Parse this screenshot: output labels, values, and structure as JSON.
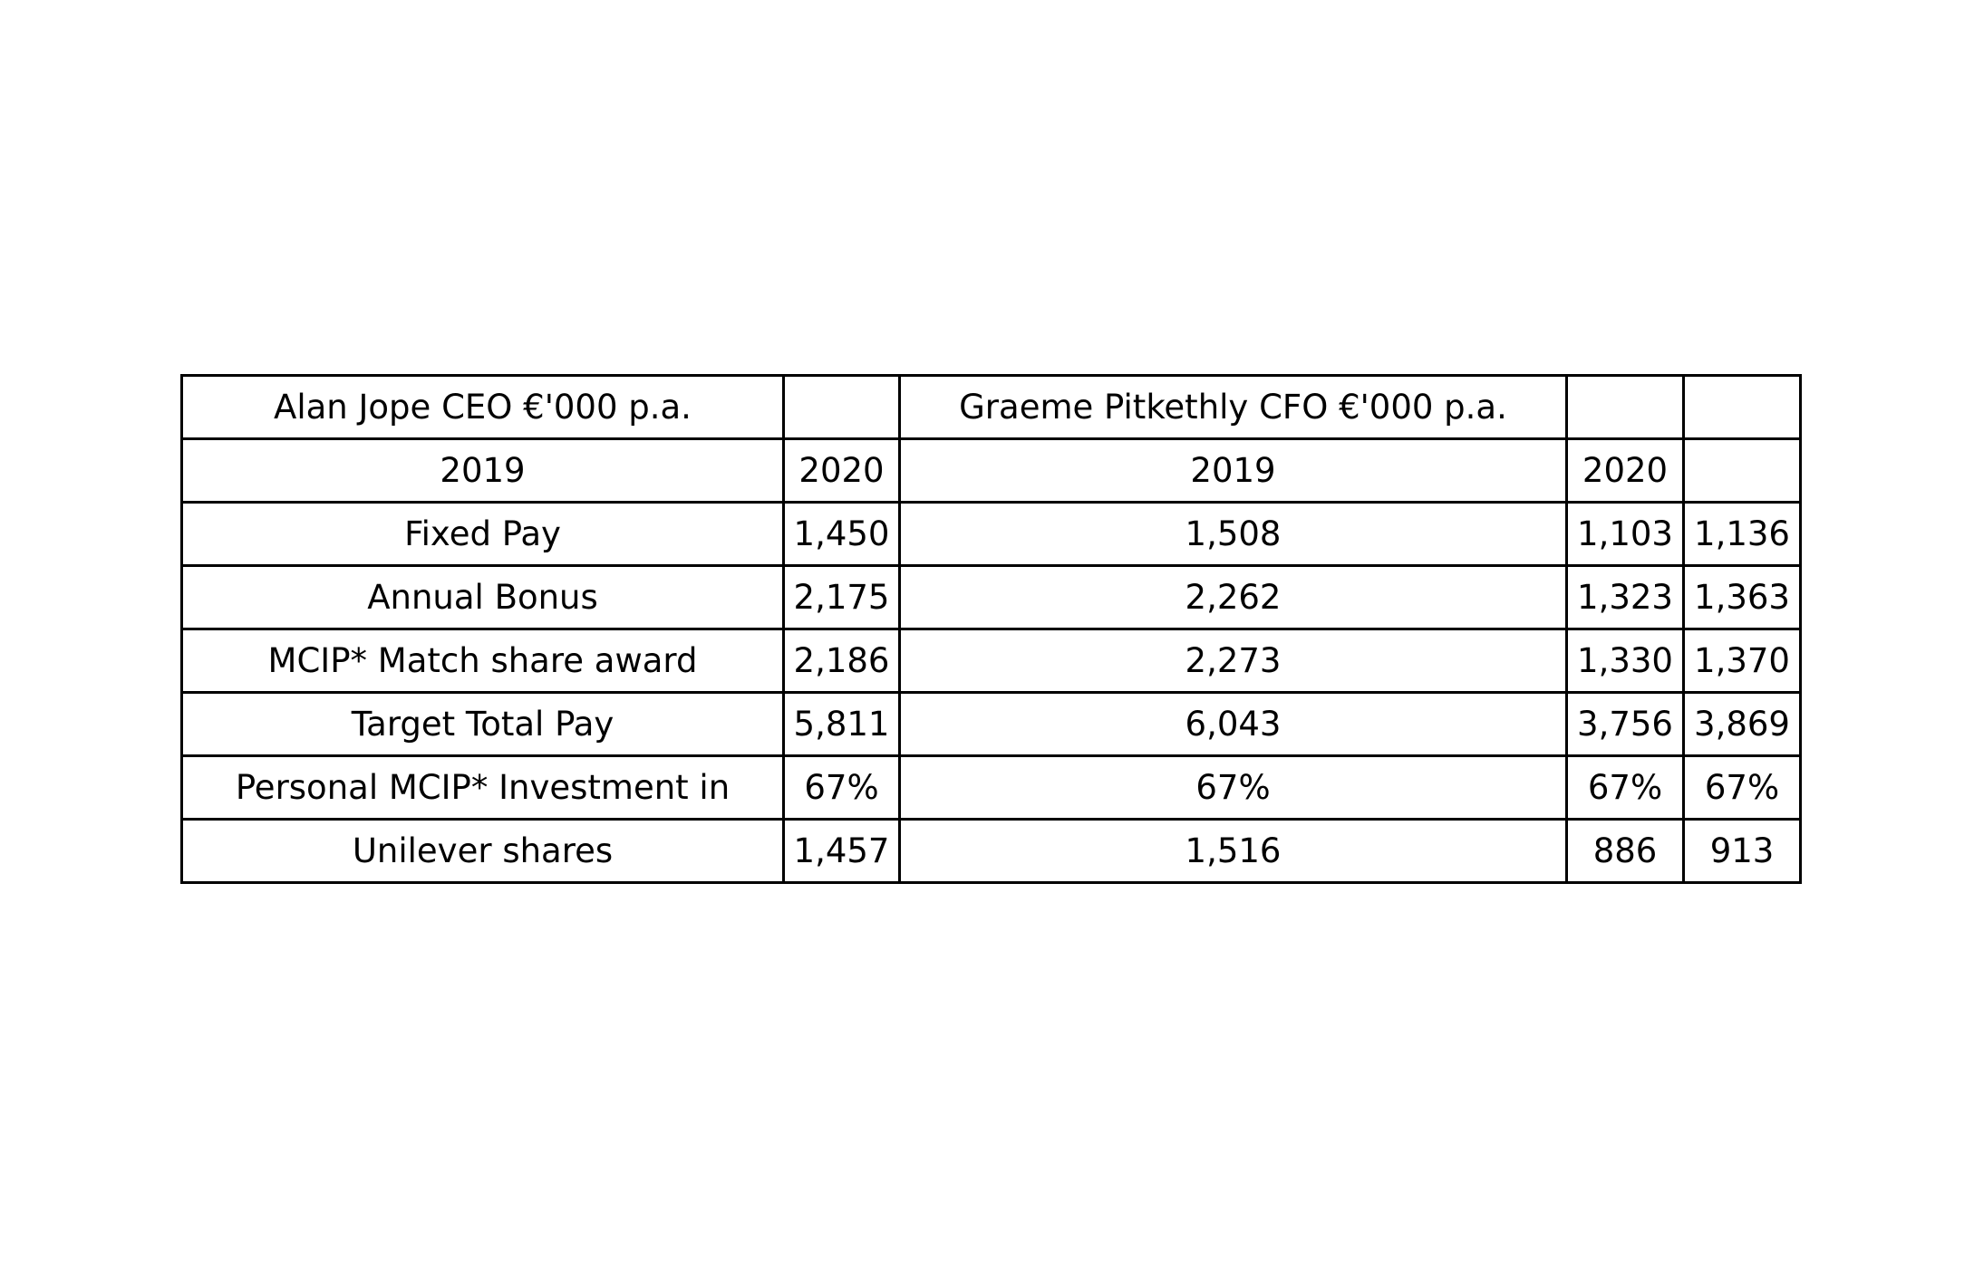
{
  "chart_data": {
    "type": "table",
    "rows": [
      [
        "Alan Jope CEO €'000 p.a.",
        "",
        "Graeme Pitkethly CFO €'000 p.a.",
        "",
        ""
      ],
      [
        "2019",
        "2020",
        "2019",
        "2020",
        ""
      ],
      [
        "Fixed Pay",
        "1,450",
        "1,508",
        "1,103",
        "1,136"
      ],
      [
        "Annual Bonus",
        "2,175",
        "2,262",
        "1,323",
        "1,363"
      ],
      [
        "MCIP* Match share award",
        "2,186",
        "2,273",
        "1,330",
        "1,370"
      ],
      [
        "Target Total Pay",
        "5,811",
        "6,043",
        "3,756",
        "3,869"
      ],
      [
        "Personal MCIP* Investment in",
        "67%",
        "67%",
        "67%",
        "67%"
      ],
      [
        "Unilever shares",
        "1,457",
        "1,516",
        "886",
        "913"
      ]
    ]
  }
}
